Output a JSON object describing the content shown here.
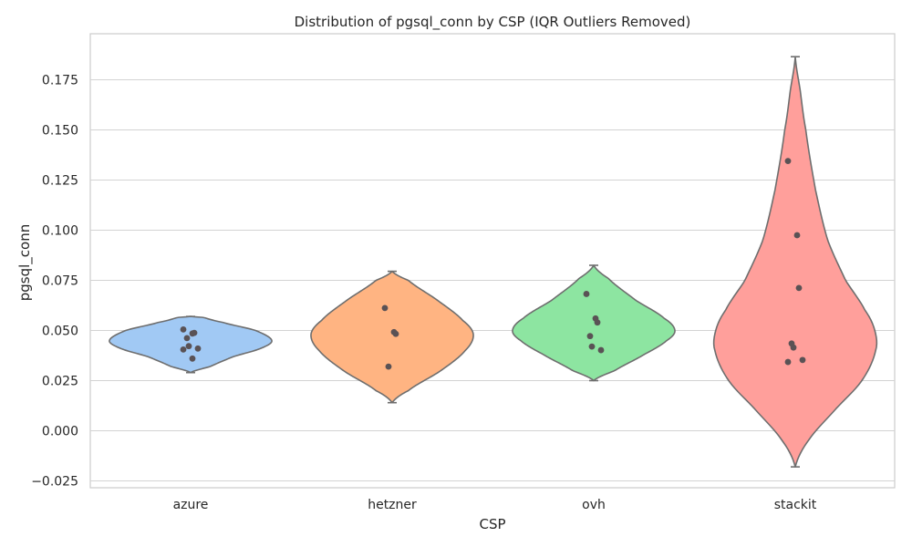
{
  "chart_data": {
    "type": "violin",
    "title": "Distribution of pgsql_conn by CSP (IQR Outliers Removed)",
    "xlabel": "CSP",
    "ylabel": "pgsql_conn",
    "ylim": [
      -0.028,
      0.197
    ],
    "yticks": [
      -0.025,
      0.0,
      0.025,
      0.05,
      0.075,
      0.1,
      0.125,
      0.15,
      0.175
    ],
    "ytick_labels": [
      "−0.025",
      "0.000",
      "0.025",
      "0.050",
      "0.075",
      "0.100",
      "0.125",
      "0.150",
      "0.175"
    ],
    "grid": true,
    "categories": [
      "azure",
      "hetzner",
      "ovh",
      "stackit"
    ],
    "series": [
      {
        "category": "azure",
        "color": "#a1c9f4",
        "points": [
          0.0505,
          0.0485,
          0.0488,
          0.0462,
          0.0422,
          0.041,
          0.0405,
          0.036
        ],
        "profile": [
          [
            0.029,
            0.0
          ],
          [
            0.032,
            0.24
          ],
          [
            0.037,
            0.53
          ],
          [
            0.041,
            0.86
          ],
          [
            0.045,
            1.0
          ],
          [
            0.05,
            0.8
          ],
          [
            0.054,
            0.4
          ],
          [
            0.0565,
            0.16
          ],
          [
            0.057,
            0.0
          ]
        ]
      },
      {
        "category": "hetzner",
        "color": "#ffb482",
        "points": [
          0.0612,
          0.0492,
          0.0483,
          0.032
        ],
        "profile": [
          [
            0.014,
            0.0
          ],
          [
            0.02,
            0.2
          ],
          [
            0.03,
            0.6
          ],
          [
            0.04,
            0.9
          ],
          [
            0.048,
            1.0
          ],
          [
            0.055,
            0.87
          ],
          [
            0.065,
            0.56
          ],
          [
            0.075,
            0.2
          ],
          [
            0.0795,
            0.0
          ]
        ]
      },
      {
        "category": "ovh",
        "color": "#8de5a1",
        "points": [
          0.0682,
          0.056,
          0.054,
          0.0472,
          0.042,
          0.0402
        ],
        "profile": [
          [
            0.025,
            0.0
          ],
          [
            0.03,
            0.26
          ],
          [
            0.038,
            0.62
          ],
          [
            0.045,
            0.9
          ],
          [
            0.05,
            1.0
          ],
          [
            0.056,
            0.87
          ],
          [
            0.065,
            0.52
          ],
          [
            0.076,
            0.18
          ],
          [
            0.0825,
            0.0
          ]
        ]
      },
      {
        "category": "stackit",
        "color": "#ff9f9b",
        "points": [
          0.1345,
          0.0975,
          0.0712,
          0.0435,
          0.0415,
          0.0353,
          0.0343
        ],
        "profile": [
          [
            -0.018,
            0.0
          ],
          [
            -0.005,
            0.16
          ],
          [
            0.01,
            0.48
          ],
          [
            0.025,
            0.82
          ],
          [
            0.04,
            0.99
          ],
          [
            0.05,
            0.98
          ],
          [
            0.06,
            0.86
          ],
          [
            0.075,
            0.62
          ],
          [
            0.095,
            0.4
          ],
          [
            0.12,
            0.25
          ],
          [
            0.15,
            0.13
          ],
          [
            0.17,
            0.06
          ],
          [
            0.1865,
            0.0
          ]
        ]
      }
    ]
  }
}
